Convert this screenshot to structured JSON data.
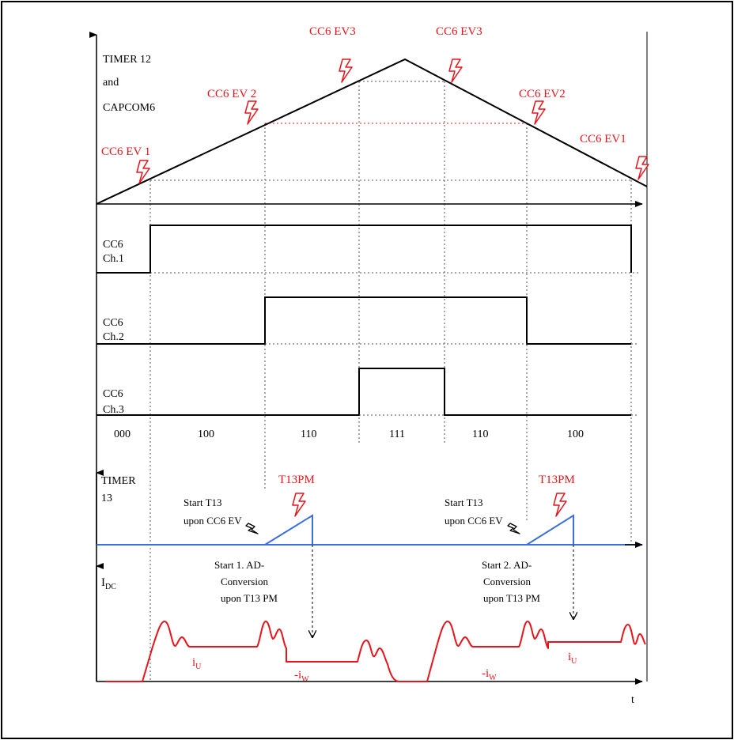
{
  "colors": {
    "event": "#e8141b",
    "timer13": "#3b6fe0",
    "current": "#e8141b",
    "line": "#000000",
    "dotted": "#555555"
  },
  "timer12": {
    "label_1": "TIMER 12",
    "label_2": "and",
    "label_3": "CAPCOM6"
  },
  "events": {
    "ev1_left": "CC6 EV 1",
    "ev2_left": "CC6 EV 2",
    "ev3_left": "CC6 EV3",
    "ev3_right": "CC6 EV3",
    "ev2_right": "CC6 EV2",
    "ev1_right": "CC6 EV1"
  },
  "channels": {
    "ch1_a": "CC6",
    "ch1_b": "Ch.1",
    "ch2_a": "CC6",
    "ch2_b": "Ch.2",
    "ch3_a": "CC6",
    "ch3_b": "Ch.3"
  },
  "states": [
    "000",
    "100",
    "110",
    "111",
    "110",
    "100"
  ],
  "timer13": {
    "label_1": "TIMER",
    "label_2": "13",
    "pm_left": "T13PM",
    "pm_right": "T13PM",
    "start_left_1": "Start T13",
    "start_left_2": "upon CC6 EV",
    "start_right_1": "Start T13",
    "start_right_2": "upon CC6 EV"
  },
  "adc": {
    "first_1": "Start 1. AD-",
    "first_2": "Conversion",
    "first_3": "upon T13 PM",
    "second_1": "Start 2. AD-",
    "second_2": "Conversion",
    "second_3": "upon T13 PM"
  },
  "current": {
    "axis_main": "I",
    "axis_sub": "DC",
    "iu_left_main": "i",
    "iu_left_sub": "U",
    "iw_left_main": "-i",
    "iw_left_sub": "W",
    "iw_right_main": "-i",
    "iw_right_sub": "W",
    "iu_right_main": "i",
    "iu_right_sub": "U"
  },
  "time_axis": "t"
}
